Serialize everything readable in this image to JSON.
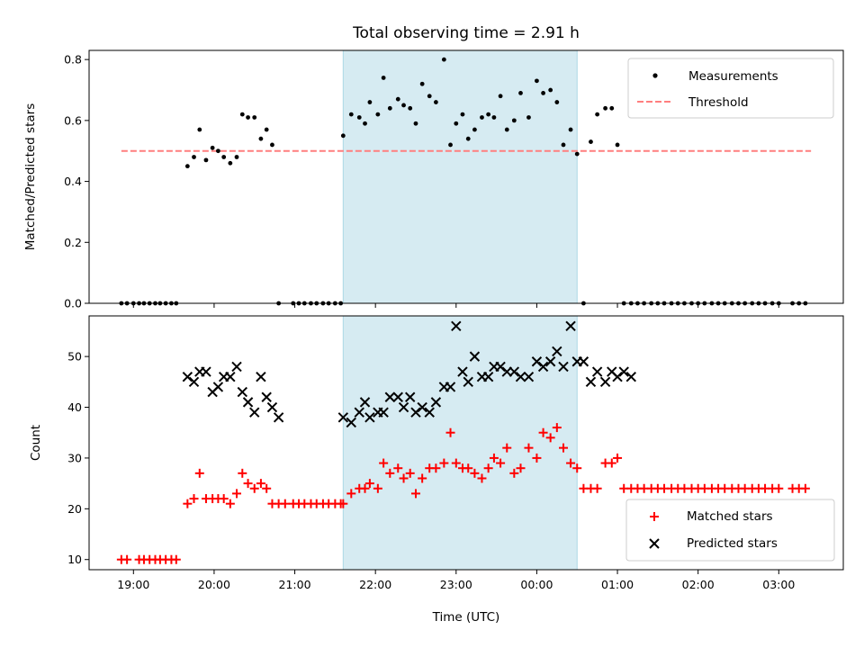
{
  "chart_data": [
    {
      "type": "scatter",
      "title": "Total observing time = 2.91 h",
      "xlabel": "",
      "ylabel": "Matched/Predicted stars",
      "x_unit": "hours since 19:00 UTC",
      "xlim": [
        -0.55,
        8.8
      ],
      "ylim": [
        0,
        0.83
      ],
      "yticks": [
        "0.0",
        "0.2",
        "0.4",
        "0.6",
        "0.8"
      ],
      "highlight_span": [
        2.6,
        5.5
      ],
      "threshold": 0.5,
      "threshold_range": [
        -0.15,
        8.4
      ],
      "legend": [
        "Measurements",
        "Threshold"
      ],
      "legend_position": "top-right",
      "colors": {
        "measurements": "#000000",
        "threshold": "#ff7f7f",
        "span": "#add8e6"
      },
      "series": [
        {
          "name": "Measurements",
          "x": [
            -0.15,
            -0.08,
            0.0,
            0.07,
            0.13,
            0.2,
            0.27,
            0.33,
            0.4,
            0.47,
            0.53,
            0.67,
            0.75,
            0.82,
            0.9,
            0.98,
            1.05,
            1.12,
            1.2,
            1.28,
            1.35,
            1.42,
            1.5,
            1.58,
            1.65,
            1.72,
            1.8,
            1.98,
            2.05,
            2.12,
            2.2,
            2.27,
            2.35,
            2.42,
            2.5,
            2.57,
            2.6,
            2.7,
            2.8,
            2.87,
            2.93,
            3.03,
            3.1,
            3.18,
            3.28,
            3.35,
            3.43,
            3.5,
            3.58,
            3.67,
            3.75,
            3.85,
            3.93,
            4.0,
            4.08,
            4.15,
            4.23,
            4.32,
            4.4,
            4.47,
            4.55,
            4.63,
            4.72,
            4.8,
            4.9,
            5.0,
            5.08,
            5.17,
            5.25,
            5.33,
            5.42,
            5.5,
            5.58,
            5.67,
            5.75,
            5.85,
            5.93,
            6.0,
            6.08,
            6.17,
            6.25,
            6.33,
            6.42,
            6.5,
            6.58,
            6.67,
            6.75,
            6.83,
            6.92,
            7.0,
            7.08,
            7.17,
            7.25,
            7.33,
            7.42,
            7.5,
            7.58,
            7.67,
            7.75,
            7.83,
            7.92,
            8.0,
            8.17,
            8.25,
            8.33
          ],
          "y": [
            0,
            0,
            0,
            0,
            0,
            0,
            0,
            0,
            0,
            0,
            0,
            0.45,
            0.48,
            0.57,
            0.47,
            0.51,
            0.5,
            0.48,
            0.46,
            0.48,
            0.62,
            0.61,
            0.61,
            0.54,
            0.57,
            0.52,
            0,
            0,
            0,
            0,
            0,
            0,
            0,
            0,
            0,
            0,
            0.55,
            0.62,
            0.61,
            0.59,
            0.66,
            0.62,
            0.74,
            0.64,
            0.67,
            0.65,
            0.64,
            0.59,
            0.72,
            0.68,
            0.66,
            0.8,
            0.52,
            0.59,
            0.62,
            0.54,
            0.57,
            0.61,
            0.62,
            0.61,
            0.68,
            0.57,
            0.6,
            0.69,
            0.61,
            0.73,
            0.69,
            0.7,
            0.66,
            0.52,
            0.57,
            0.49,
            0,
            0.53,
            0.62,
            0.64,
            0.64,
            0.52,
            0,
            0,
            0,
            0,
            0,
            0,
            0,
            0,
            0,
            0,
            0,
            0,
            0,
            0,
            0,
            0,
            0,
            0,
            0,
            0,
            0,
            0,
            0,
            0,
            0,
            0,
            0
          ]
        }
      ]
    },
    {
      "type": "scatter",
      "title": "",
      "xlabel": "Time (UTC)",
      "ylabel": "Count",
      "x_unit": "hours since 19:00 UTC",
      "xlim": [
        -0.55,
        8.8
      ],
      "ylim": [
        8,
        58
      ],
      "yticks": [
        "10",
        "20",
        "30",
        "40",
        "50"
      ],
      "xticks": [
        "19:00",
        "20:00",
        "21:00",
        "22:00",
        "23:00",
        "00:00",
        "01:00",
        "02:00",
        "03:00"
      ],
      "highlight_span": [
        2.6,
        5.5
      ],
      "legend": [
        "Matched stars",
        "Predicted stars"
      ],
      "legend_position": "bottom-right",
      "colors": {
        "matched": "#ff0000",
        "predicted": "#000000",
        "span": "#add8e6"
      },
      "series": [
        {
          "name": "Matched stars",
          "x": [
            -0.15,
            -0.08,
            0.07,
            0.13,
            0.2,
            0.27,
            0.33,
            0.4,
            0.47,
            0.53,
            0.67,
            0.75,
            0.82,
            0.9,
            0.98,
            1.05,
            1.12,
            1.2,
            1.28,
            1.35,
            1.42,
            1.5,
            1.58,
            1.65,
            1.72,
            1.8,
            1.88,
            1.98,
            2.05,
            2.12,
            2.2,
            2.27,
            2.35,
            2.42,
            2.5,
            2.57,
            2.6,
            2.7,
            2.8,
            2.87,
            2.93,
            3.03,
            3.1,
            3.18,
            3.28,
            3.35,
            3.43,
            3.5,
            3.58,
            3.67,
            3.75,
            3.85,
            3.93,
            4.0,
            4.08,
            4.15,
            4.23,
            4.32,
            4.4,
            4.47,
            4.55,
            4.63,
            4.72,
            4.8,
            4.9,
            5.0,
            5.08,
            5.17,
            5.25,
            5.33,
            5.42,
            5.5,
            5.58,
            5.67,
            5.75,
            5.85,
            5.93,
            6.0,
            6.08,
            6.17,
            6.25,
            6.33,
            6.42,
            6.5,
            6.58,
            6.67,
            6.75,
            6.83,
            6.92,
            7.0,
            7.08,
            7.17,
            7.25,
            7.33,
            7.42,
            7.5,
            7.58,
            7.67,
            7.75,
            7.83,
            7.92,
            8.0,
            8.17,
            8.25,
            8.33
          ],
          "y": [
            10,
            10,
            10,
            10,
            10,
            10,
            10,
            10,
            10,
            10,
            21,
            22,
            27,
            22,
            22,
            22,
            22,
            21,
            23,
            27,
            25,
            24,
            25,
            24,
            21,
            21,
            21,
            21,
            21,
            21,
            21,
            21,
            21,
            21,
            21,
            21,
            21,
            23,
            24,
            24,
            25,
            24,
            29,
            27,
            28,
            26,
            27,
            23,
            26,
            28,
            28,
            29,
            35,
            29,
            28,
            28,
            27,
            26,
            28,
            30,
            29,
            32,
            27,
            28,
            32,
            30,
            35,
            34,
            36,
            32,
            29,
            28,
            24,
            24,
            24,
            29,
            29,
            30,
            24,
            24,
            24,
            24,
            24,
            24,
            24,
            24,
            24,
            24,
            24,
            24,
            24,
            24,
            24,
            24,
            24,
            24,
            24,
            24,
            24,
            24,
            24,
            24,
            24,
            24,
            24
          ]
        },
        {
          "name": "Predicted stars",
          "x": [
            0.67,
            0.75,
            0.82,
            0.9,
            0.98,
            1.05,
            1.12,
            1.2,
            1.28,
            1.35,
            1.42,
            1.5,
            1.58,
            1.65,
            1.72,
            1.8,
            2.6,
            2.7,
            2.8,
            2.87,
            2.93,
            3.03,
            3.1,
            3.18,
            3.28,
            3.35,
            3.43,
            3.5,
            3.58,
            3.67,
            3.75,
            3.85,
            3.93,
            4.0,
            4.08,
            4.15,
            4.23,
            4.32,
            4.4,
            4.47,
            4.55,
            4.63,
            4.72,
            4.8,
            4.9,
            5.0,
            5.08,
            5.17,
            5.25,
            5.33,
            5.42,
            5.5,
            5.58,
            5.67,
            5.75,
            5.85,
            5.93,
            6.0,
            6.08,
            6.17
          ],
          "y": [
            46,
            45,
            47,
            47,
            43,
            44,
            46,
            46,
            48,
            43,
            41,
            39,
            46,
            42,
            40,
            38,
            38,
            37,
            39,
            41,
            38,
            39,
            39,
            42,
            42,
            40,
            42,
            39,
            40,
            39,
            41,
            44,
            44,
            56,
            47,
            45,
            50,
            46,
            46,
            48,
            48,
            47,
            47,
            46,
            46,
            49,
            48,
            49,
            51,
            48,
            56,
            49,
            49,
            45,
            47,
            45,
            47,
            46,
            47,
            46
          ]
        }
      ]
    }
  ]
}
